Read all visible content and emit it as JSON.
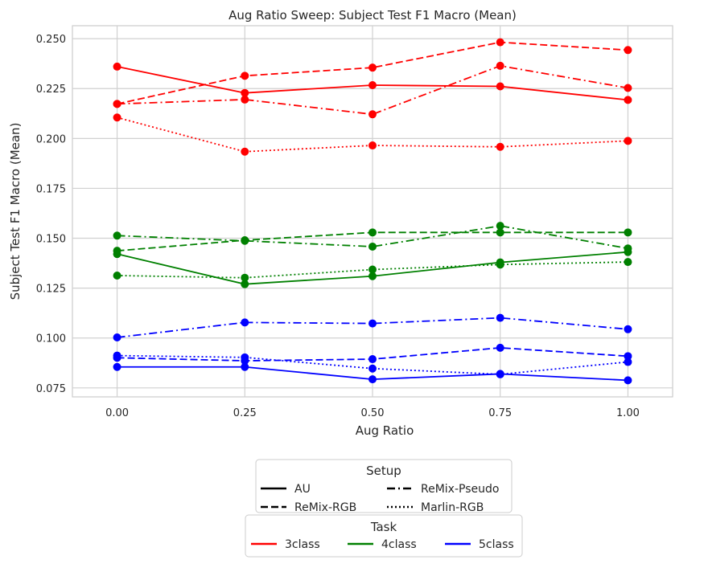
{
  "chart_data": {
    "type": "line",
    "title": "Aug Ratio Sweep: Subject Test F1 Macro (Mean)",
    "xlabel": "Aug Ratio",
    "ylabel": "Subject Test F1 Macro (Mean)",
    "x": [
      0.0,
      0.25,
      0.5,
      0.75,
      1.0
    ],
    "x_tick_labels": [
      "0.00",
      "0.25",
      "0.50",
      "0.75",
      "1.00"
    ],
    "y_ticks": [
      0.075,
      0.1,
      0.125,
      0.15,
      0.175,
      0.2,
      0.225,
      0.25
    ],
    "y_tick_labels": [
      "0.075",
      "0.100",
      "0.125",
      "0.150",
      "0.175",
      "0.200",
      "0.225",
      "0.250"
    ],
    "xlim": [
      -0.0875,
      1.0875
    ],
    "ylim": [
      0.0705,
      0.2565
    ],
    "grid": true,
    "series": [
      {
        "task": "3class",
        "setup": "AU",
        "values": [
          0.236,
          0.2228,
          0.2267,
          0.2261,
          0.2193
        ]
      },
      {
        "task": "3class",
        "setup": "ReMix-RGB",
        "values": [
          0.2173,
          0.2314,
          0.2355,
          0.2482,
          0.2443
        ]
      },
      {
        "task": "3class",
        "setup": "ReMix-Pseudo",
        "values": [
          0.2173,
          0.2195,
          0.2121,
          0.2364,
          0.2253
        ]
      },
      {
        "task": "3class",
        "setup": "Marlin-RGB",
        "values": [
          0.2105,
          0.1934,
          0.1965,
          0.1958,
          0.1988
        ]
      },
      {
        "task": "4class",
        "setup": "AU",
        "values": [
          0.1421,
          0.127,
          0.131,
          0.1379,
          0.1431
        ]
      },
      {
        "task": "4class",
        "setup": "ReMix-RGB",
        "values": [
          0.1437,
          0.149,
          0.1529,
          0.1529,
          0.1529
        ]
      },
      {
        "task": "4class",
        "setup": "ReMix-Pseudo",
        "values": [
          0.1513,
          0.1487,
          0.1458,
          0.1562,
          0.1449
        ]
      },
      {
        "task": "4class",
        "setup": "Marlin-RGB",
        "values": [
          0.1313,
          0.1302,
          0.1343,
          0.1368,
          0.1381
        ]
      },
      {
        "task": "5class",
        "setup": "AU",
        "values": [
          0.0855,
          0.0855,
          0.0793,
          0.082,
          0.0788
        ]
      },
      {
        "task": "5class",
        "setup": "ReMix-RGB",
        "values": [
          0.0901,
          0.0886,
          0.0894,
          0.0951,
          0.0909
        ]
      },
      {
        "task": "5class",
        "setup": "ReMix-Pseudo",
        "values": [
          0.1003,
          0.1078,
          0.1073,
          0.1101,
          0.1044
        ]
      },
      {
        "task": "5class",
        "setup": "Marlin-RGB",
        "values": [
          0.0912,
          0.0903,
          0.0847,
          0.0818,
          0.088
        ]
      }
    ],
    "legend_setup": {
      "title": "Setup",
      "placement": "below plot, center",
      "entries": [
        "AU",
        "ReMix-Pseudo",
        "ReMix-RGB",
        "Marlin-RGB"
      ],
      "styles": [
        "solid",
        "dashdot",
        "dashed",
        "dotted"
      ]
    },
    "legend_task": {
      "title": "Task",
      "placement": "below setup legend, center",
      "entries": [
        "3class",
        "4class",
        "5class"
      ]
    },
    "colors": {
      "3class": "#ff0000",
      "4class": "#008000",
      "5class": "#0000ff"
    },
    "dash_styles": {
      "AU": "",
      "ReMix-RGB": "9 4",
      "ReMix-Pseudo": "10 4 2 4",
      "Marlin-RGB": "2 3"
    }
  }
}
